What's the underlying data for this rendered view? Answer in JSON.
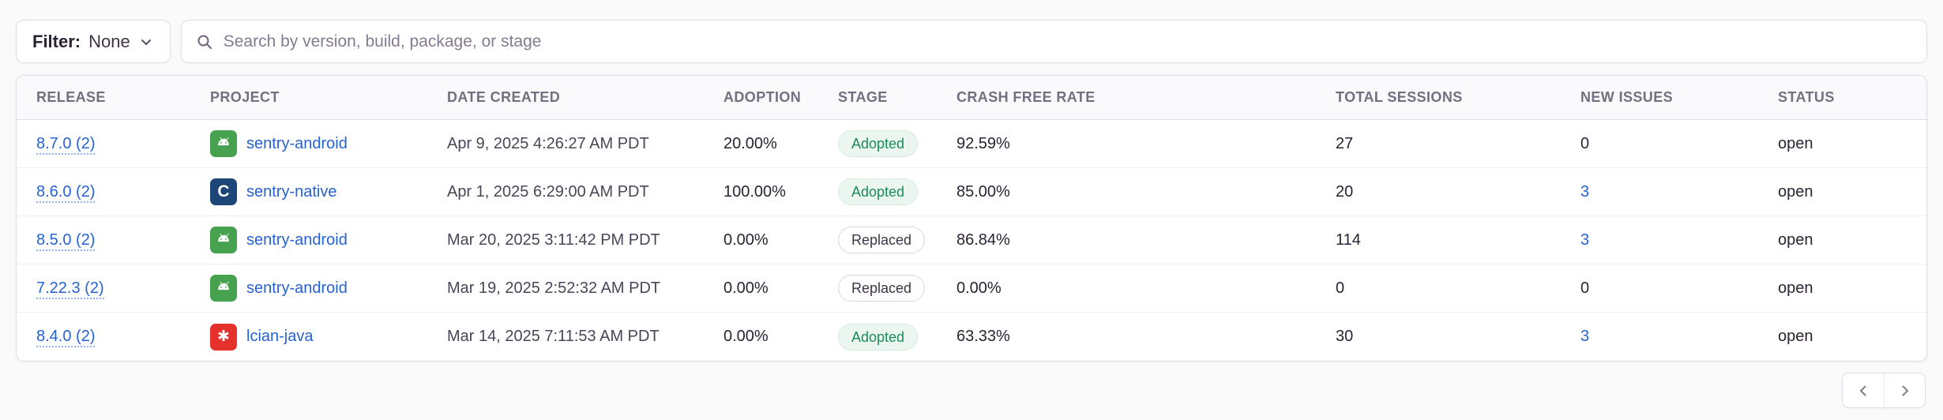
{
  "filter": {
    "label": "Filter:",
    "value": "None"
  },
  "search": {
    "placeholder": "Search by version, build, package, or stage"
  },
  "table": {
    "columns": [
      {
        "key": "release",
        "label": "RELEASE"
      },
      {
        "key": "project",
        "label": "PROJECT"
      },
      {
        "key": "date",
        "label": "DATE CREATED"
      },
      {
        "key": "adoption",
        "label": "ADOPTION"
      },
      {
        "key": "stage",
        "label": "STAGE"
      },
      {
        "key": "crash_free",
        "label": "CRASH FREE RATE"
      },
      {
        "key": "sessions",
        "label": "TOTAL SESSIONS"
      },
      {
        "key": "new_issues",
        "label": "NEW ISSUES"
      },
      {
        "key": "status",
        "label": "STATUS"
      }
    ],
    "rows": [
      {
        "release": "8.7.0 (2)",
        "project": "sentry-android",
        "platform": "android",
        "date": "Apr 9, 2025 4:26:27 AM PDT",
        "adoption": "20.00%",
        "stage": "Adopted",
        "crash_free": "92.59%",
        "sessions": "27",
        "new_issues": "0",
        "new_issues_is_link": false,
        "status": "open"
      },
      {
        "release": "8.6.0 (2)",
        "project": "sentry-native",
        "platform": "c",
        "date": "Apr 1, 2025 6:29:00 AM PDT",
        "adoption": "100.00%",
        "stage": "Adopted",
        "crash_free": "85.00%",
        "sessions": "20",
        "new_issues": "3",
        "new_issues_is_link": true,
        "status": "open"
      },
      {
        "release": "8.5.0 (2)",
        "project": "sentry-android",
        "platform": "android",
        "date": "Mar 20, 2025 3:11:42 PM PDT",
        "adoption": "0.00%",
        "stage": "Replaced",
        "crash_free": "86.84%",
        "sessions": "114",
        "new_issues": "3",
        "new_issues_is_link": true,
        "status": "open"
      },
      {
        "release": "7.22.3 (2)",
        "project": "sentry-android",
        "platform": "android",
        "date": "Mar 19, 2025 2:52:32 AM PDT",
        "adoption": "0.00%",
        "stage": "Replaced",
        "crash_free": "0.00%",
        "sessions": "0",
        "new_issues": "0",
        "new_issues_is_link": false,
        "status": "open"
      },
      {
        "release": "8.4.0 (2)",
        "project": "lcian-java",
        "platform": "java",
        "date": "Mar 14, 2025 7:11:53 AM PDT",
        "adoption": "0.00%",
        "stage": "Adopted",
        "crash_free": "63.33%",
        "sessions": "30",
        "new_issues": "3",
        "new_issues_is_link": true,
        "status": "open"
      }
    ]
  },
  "icons": {
    "filter_chevron": "chevron-down-icon",
    "search": "search-icon",
    "platforms": {
      "android": "android-icon",
      "c": "c-language-icon",
      "java": "java-icon"
    },
    "pagination": [
      "chevron-left-icon",
      "chevron-right-icon"
    ]
  },
  "colors": {
    "link": "#2562d4",
    "adopted": "#1c8a5a",
    "android": "#46a24f",
    "native": "#1d4577",
    "java": "#e4312b"
  }
}
